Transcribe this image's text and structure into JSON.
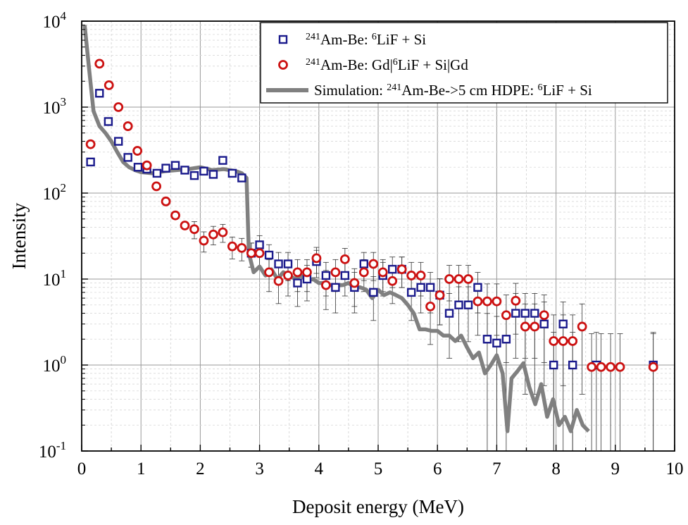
{
  "chart_data": {
    "type": "scatter",
    "xlabel": "Deposit energy (MeV)",
    "ylabel": "Intensity",
    "xlim": [
      0,
      10
    ],
    "ylim": [
      0.1,
      10000
    ],
    "yscale": "log",
    "x_ticks": [
      "0",
      "1",
      "2",
      "3",
      "4",
      "5",
      "6",
      "7",
      "8",
      "9",
      "10"
    ],
    "y_ticks": [
      {
        "base": "10",
        "exp": "-1"
      },
      {
        "base": "10",
        "exp": "0"
      },
      {
        "base": "10",
        "exp": "1"
      },
      {
        "base": "10",
        "exp": "2"
      },
      {
        "base": "10",
        "exp": "3"
      },
      {
        "base": "10",
        "exp": "4"
      }
    ],
    "grid": true,
    "legend_position": "top-right",
    "series": [
      {
        "id": "lif",
        "legend": {
          "sup1": "241",
          "t1": "Am-Be: ",
          "sup2": "6",
          "t2": "LiF + Si"
        },
        "marker": "square",
        "color": "#1a1a8c",
        "x": [
          0.15,
          0.3,
          0.45,
          0.62,
          0.78,
          0.95,
          1.1,
          1.27,
          1.42,
          1.58,
          1.74,
          1.9,
          2.06,
          2.22,
          2.38,
          2.54,
          2.7,
          2.86,
          3.0,
          3.16,
          3.32,
          3.48,
          3.64,
          3.8,
          3.96,
          4.12,
          4.28,
          4.44,
          4.6,
          4.76,
          4.92,
          5.08,
          5.24,
          5.4,
          5.56,
          5.72,
          5.88,
          6.04,
          6.2,
          6.36,
          6.52,
          6.68,
          6.84,
          7.0,
          7.16,
          7.32,
          7.48,
          7.64,
          7.8,
          7.96,
          8.12,
          8.28,
          8.68,
          9.64
        ],
        "y": [
          230,
          1450,
          680,
          400,
          260,
          200,
          190,
          170,
          195,
          210,
          185,
          160,
          180,
          165,
          240,
          170,
          150,
          20,
          25,
          19,
          15,
          15,
          9,
          10,
          16,
          11,
          8,
          11,
          8,
          15,
          7,
          11,
          13,
          13,
          7,
          8,
          8,
          6.5,
          4,
          5,
          5,
          8,
          2,
          1.8,
          2,
          4,
          4,
          4,
          3,
          1,
          3,
          1,
          1,
          1
        ]
      },
      {
        "id": "gd",
        "legend": {
          "sup1": "241",
          "t1": "Am-Be: Gd|",
          "sup2": "6",
          "t2": "LiF + Si|Gd"
        },
        "marker": "circle",
        "color": "#cc1111",
        "x": [
          0.15,
          0.3,
          0.46,
          0.62,
          0.78,
          0.94,
          1.1,
          1.26,
          1.42,
          1.58,
          1.74,
          1.9,
          2.06,
          2.22,
          2.38,
          2.54,
          2.7,
          2.86,
          3.0,
          3.16,
          3.32,
          3.48,
          3.64,
          3.8,
          3.96,
          4.12,
          4.28,
          4.44,
          4.6,
          4.76,
          4.92,
          5.08,
          5.24,
          5.4,
          5.56,
          5.72,
          5.88,
          6.04,
          6.2,
          6.36,
          6.52,
          6.68,
          6.84,
          7.0,
          7.16,
          7.32,
          7.48,
          7.64,
          7.8,
          7.96,
          8.12,
          8.28,
          8.44,
          8.6,
          8.76,
          8.92,
          9.08,
          9.64
        ],
        "y": [
          370,
          3200,
          1800,
          1000,
          600,
          310,
          210,
          120,
          80,
          55,
          42,
          38,
          28,
          33,
          35,
          24,
          23,
          20,
          20,
          12,
          9.5,
          11,
          12,
          12,
          17.5,
          8.5,
          12,
          17,
          9,
          12,
          15,
          12,
          9.5,
          13,
          11,
          11,
          4.8,
          6.5,
          10,
          10,
          10,
          5.5,
          5.5,
          5.5,
          3.8,
          5.6,
          2.8,
          2.8,
          3.8,
          1.9,
          1.9,
          1.9,
          2.8,
          0.95,
          0.95,
          0.95,
          0.95,
          0.95
        ]
      },
      {
        "id": "sim",
        "legend": {
          "t1": "Simulation: ",
          "sup1": "241",
          "t2": "Am-Be->5 cm HDPE: ",
          "sup2": "6",
          "t3": "LiF + Si"
        },
        "marker": "line",
        "color": "#808080",
        "x": [
          0.05,
          0.12,
          0.2,
          0.3,
          0.4,
          0.5,
          0.6,
          0.7,
          0.8,
          0.9,
          1.0,
          1.2,
          1.4,
          1.6,
          1.8,
          2.0,
          2.2,
          2.4,
          2.6,
          2.7,
          2.78,
          2.82,
          2.9,
          3.0,
          3.1,
          3.2,
          3.3,
          3.4,
          3.5,
          3.6,
          3.7,
          3.8,
          3.9,
          4.0,
          4.1,
          4.2,
          4.3,
          4.4,
          4.5,
          4.6,
          4.7,
          4.8,
          4.9,
          5.0,
          5.1,
          5.2,
          5.3,
          5.4,
          5.5,
          5.6,
          5.7,
          5.8,
          5.9,
          6.0,
          6.1,
          6.2,
          6.3,
          6.4,
          6.5,
          6.6,
          6.7,
          6.8,
          6.9,
          7.0,
          7.1,
          7.18,
          7.25,
          7.35,
          7.45,
          7.55,
          7.65,
          7.75,
          7.85,
          7.95,
          8.05,
          8.15,
          8.25,
          8.35,
          8.45,
          8.55
        ],
        "y": [
          9000,
          3000,
          900,
          600,
          500,
          400,
          300,
          230,
          200,
          185,
          175,
          170,
          180,
          185,
          190,
          200,
          185,
          190,
          180,
          170,
          150,
          20,
          12,
          14,
          11,
          13,
          10,
          12,
          11,
          10,
          11,
          9.5,
          10,
          9,
          9,
          8.5,
          8.5,
          8.5,
          9,
          8,
          8,
          7.5,
          6,
          7.5,
          6.5,
          7,
          6.5,
          6,
          5,
          4,
          2.6,
          2.6,
          2.5,
          2.5,
          2.2,
          2.2,
          1.9,
          2.2,
          1.6,
          1.2,
          1.4,
          0.8,
          1.0,
          1.3,
          0.8,
          0.17,
          0.7,
          0.85,
          1.05,
          0.55,
          0.35,
          0.6,
          0.25,
          0.4,
          0.2,
          0.25,
          0.17,
          0.3,
          0.2,
          0.17
        ]
      }
    ]
  }
}
